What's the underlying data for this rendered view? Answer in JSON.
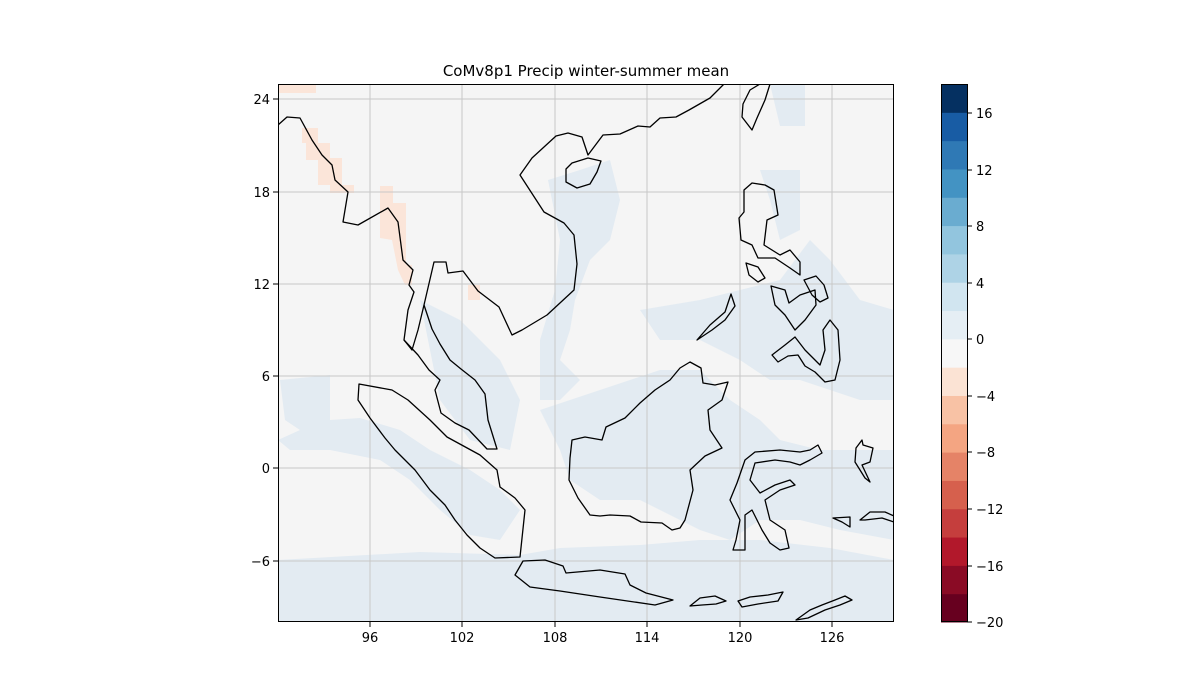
{
  "title": "CoMv8p1 Precip winter-summer mean",
  "map": {
    "lon_range": [
      90,
      130
    ],
    "lat_range": [
      -10,
      25
    ],
    "lon_ticks": [
      "96",
      "102",
      "108",
      "114",
      "120",
      "126"
    ],
    "lat_ticks": [
      "24",
      "18",
      "12",
      "6",
      "0",
      "−6"
    ],
    "grid": true,
    "background_color": "#f5f5f5",
    "coastline_color": "#000000"
  },
  "colorbar": {
    "min": -20,
    "max": 18,
    "step": 2,
    "tick_labels": [
      "16",
      "12",
      "8",
      "4",
      "0",
      "−4",
      "−8",
      "−12",
      "−16",
      "−20"
    ],
    "colors": [
      "#67001f",
      "#8a0b25",
      "#b2182b",
      "#c53e3d",
      "#d6604d",
      "#e58367",
      "#f4a582",
      "#f8c2a5",
      "#fbe3d4",
      "#f7f7f7",
      "#e5eef4",
      "#d1e5f0",
      "#aed3e6",
      "#92c5de",
      "#6aacd0",
      "#4393c3",
      "#2f79b5",
      "#185ca4",
      "#053061"
    ]
  },
  "field_colors": {
    "light_blue": "#e3ebf2",
    "light_red": "#fbe5d9",
    "neutral": "#f5f5f5"
  }
}
